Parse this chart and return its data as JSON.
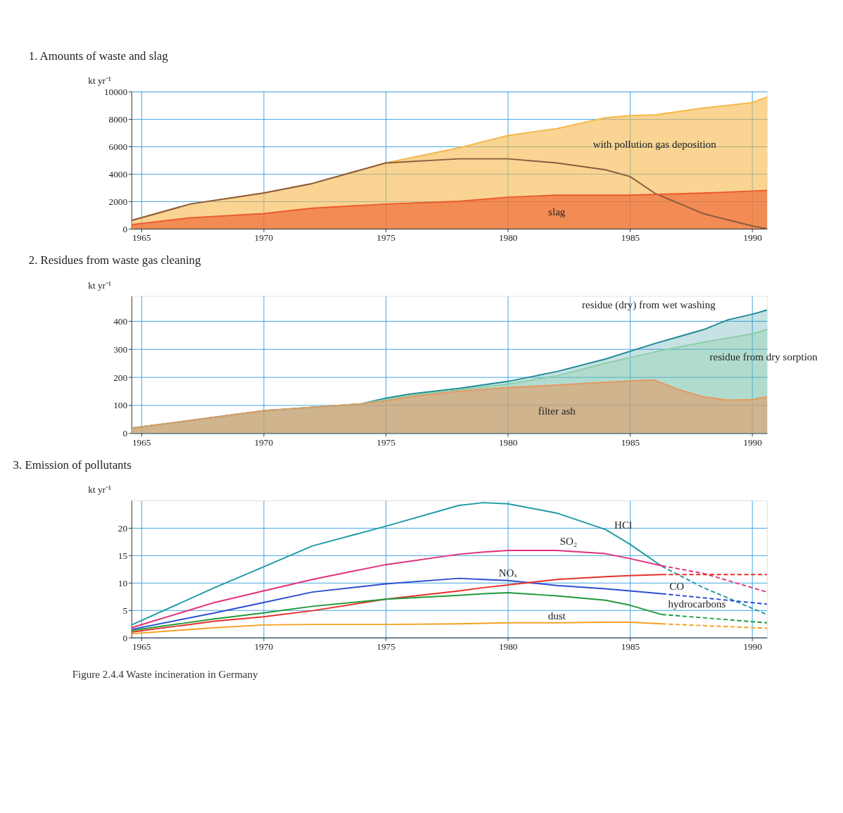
{
  "chart_data": [
    {
      "type": "area",
      "title": "1. Amounts of waste and slag",
      "ylabel": "kt yr⁻¹",
      "x": [
        1964.6,
        1967,
        1970,
        1972,
        1975,
        1978,
        1980,
        1982,
        1984,
        1985,
        1986,
        1988,
        1990,
        1990.6
      ],
      "xlim": [
        1964.6,
        1990.6
      ],
      "xticks": [
        1965,
        1970,
        1975,
        1980,
        1985,
        1990
      ],
      "ylim": [
        0,
        10000
      ],
      "yticks": [
        0,
        2000,
        4000,
        6000,
        8000,
        10000
      ],
      "grid": true,
      "series": [
        {
          "name": "with pollution gas deposition",
          "color": "#f5b84a",
          "values": [
            600,
            1800,
            2600,
            3300,
            4800,
            5900,
            6800,
            7300,
            8100,
            8250,
            8300,
            8800,
            9200,
            9600
          ]
        },
        {
          "type": "line",
          "color": "#8b5a40",
          "values": [
            600,
            1800,
            2600,
            3300,
            4800,
            5100,
            5100,
            4800,
            4300,
            3800,
            2600,
            1100,
            200,
            0
          ]
        },
        {
          "name": "slag",
          "color": "#ec5a2c",
          "values": [
            300,
            800,
            1100,
            1500,
            1800,
            2000,
            2300,
            2450,
            2450,
            2450,
            2500,
            2600,
            2750,
            2800
          ]
        }
      ]
    },
    {
      "type": "area",
      "title": "2. Residues from waste gas cleaning",
      "ylabel": "kt yr⁻¹",
      "x": [
        1964.6,
        1970,
        1974,
        1975,
        1976,
        1978,
        1980,
        1982,
        1984,
        1986,
        1987,
        1988,
        1989,
        1990,
        1990.6
      ],
      "xlim": [
        1964.6,
        1990.6
      ],
      "xticks": [
        1965,
        1970,
        1975,
        1980,
        1985,
        1990
      ],
      "ylim": [
        0,
        490
      ],
      "yticks": [
        0,
        100,
        200,
        300,
        400
      ],
      "grid": true,
      "series": [
        {
          "name": "residue (dry) from wet washing",
          "color": "#1f8a94",
          "values": [
            18,
            80,
            105,
            125,
            140,
            160,
            185,
            220,
            265,
            320,
            345,
            370,
            405,
            425,
            440
          ]
        },
        {
          "name": "residue from dry sorption",
          "color": "#8ccfa8",
          "values": [
            18,
            80,
            105,
            120,
            135,
            155,
            175,
            205,
            250,
            290,
            308,
            325,
            340,
            355,
            370
          ]
        },
        {
          "name": "filter ash",
          "color": "#e39a62",
          "values": [
            18,
            80,
            105,
            115,
            130,
            150,
            163,
            172,
            182,
            190,
            155,
            130,
            118,
            120,
            130
          ]
        }
      ]
    },
    {
      "type": "line",
      "title": "3. Emission of pollutants",
      "ylabel": "kt yr⁻¹",
      "x": [
        1964.6,
        1968,
        1970,
        1972,
        1975,
        1978,
        1979,
        1980,
        1982,
        1984,
        1985,
        1986.3
      ],
      "xlim": [
        1964.6,
        1990.6
      ],
      "xticks": [
        1965,
        1970,
        1975,
        1980,
        1985,
        1990
      ],
      "ylim": [
        0,
        25
      ],
      "yticks": [
        0,
        5,
        10,
        15,
        20
      ],
      "grid": true,
      "line_style": "solid",
      "annotations": [
        "Figure 2.4.4 Waste incineration in Germany"
      ],
      "series": [
        {
          "name": "HCl",
          "color": "#1f9aa6",
          "values": [
            2.3,
            9.1,
            12.9,
            16.7,
            20.3,
            24.1,
            24.6,
            24.4,
            22.7,
            19.7,
            17,
            13
          ]
        },
        {
          "name": "SO₂",
          "color": "#e0307a",
          "values": [
            1.8,
            6.4,
            8.5,
            10.6,
            13.3,
            15.2,
            15.6,
            15.9,
            15.9,
            15.3,
            14.4,
            13.1
          ]
        },
        {
          "name": "NOₓ",
          "color": "#2a4fd0",
          "values": [
            1.5,
            4.5,
            6.4,
            8.3,
            9.8,
            10.8,
            10.6,
            10.4,
            9.5,
            8.9,
            8.5,
            8
          ]
        },
        {
          "name": "CO",
          "color": "#e8302a",
          "values": [
            1.0,
            3,
            3.8,
            4.9,
            7,
            8.5,
            9.1,
            9.6,
            10.6,
            11.1,
            11.3,
            11.5
          ]
        },
        {
          "name": "hydrocarbons",
          "color": "#1f9a3a",
          "values": [
            1.3,
            3.4,
            4.5,
            5.7,
            7.0,
            7.7,
            8.0,
            8.2,
            7.6,
            6.8,
            5.9,
            4.2
          ]
        },
        {
          "name": "dust",
          "color": "#f5a020",
          "values": [
            0.7,
            1.8,
            2.3,
            2.4,
            2.4,
            2.5,
            2.6,
            2.7,
            2.7,
            2.8,
            2.8,
            2.5
          ]
        },
        {
          "color": "#1f9aa6",
          "line_style": "dashed",
          "x": [
            1986.3,
            1988,
            1990.6
          ],
          "values": [
            13,
            9.1,
            4.2
          ]
        },
        {
          "color": "#e0307a",
          "line_style": "dashed",
          "x": [
            1986.3,
            1988,
            1990.6
          ],
          "values": [
            13.1,
            11.7,
            8.3
          ]
        },
        {
          "color": "#2a4fd0",
          "line_style": "dashed",
          "x": [
            1986.3,
            1990.6
          ],
          "values": [
            8,
            6.1
          ]
        },
        {
          "color": "#e8302a",
          "line_style": "dashed",
          "x": [
            1986.3,
            1990.6
          ],
          "values": [
            11.5,
            11.5
          ]
        },
        {
          "color": "#1f9a3a",
          "line_style": "dashed",
          "x": [
            1986.3,
            1990.6
          ],
          "values": [
            4.2,
            2.7
          ]
        },
        {
          "color": "#f5a020",
          "line_style": "dashed",
          "x": [
            1986.3,
            1990.6
          ],
          "values": [
            2.5,
            1.7
          ]
        }
      ]
    }
  ]
}
